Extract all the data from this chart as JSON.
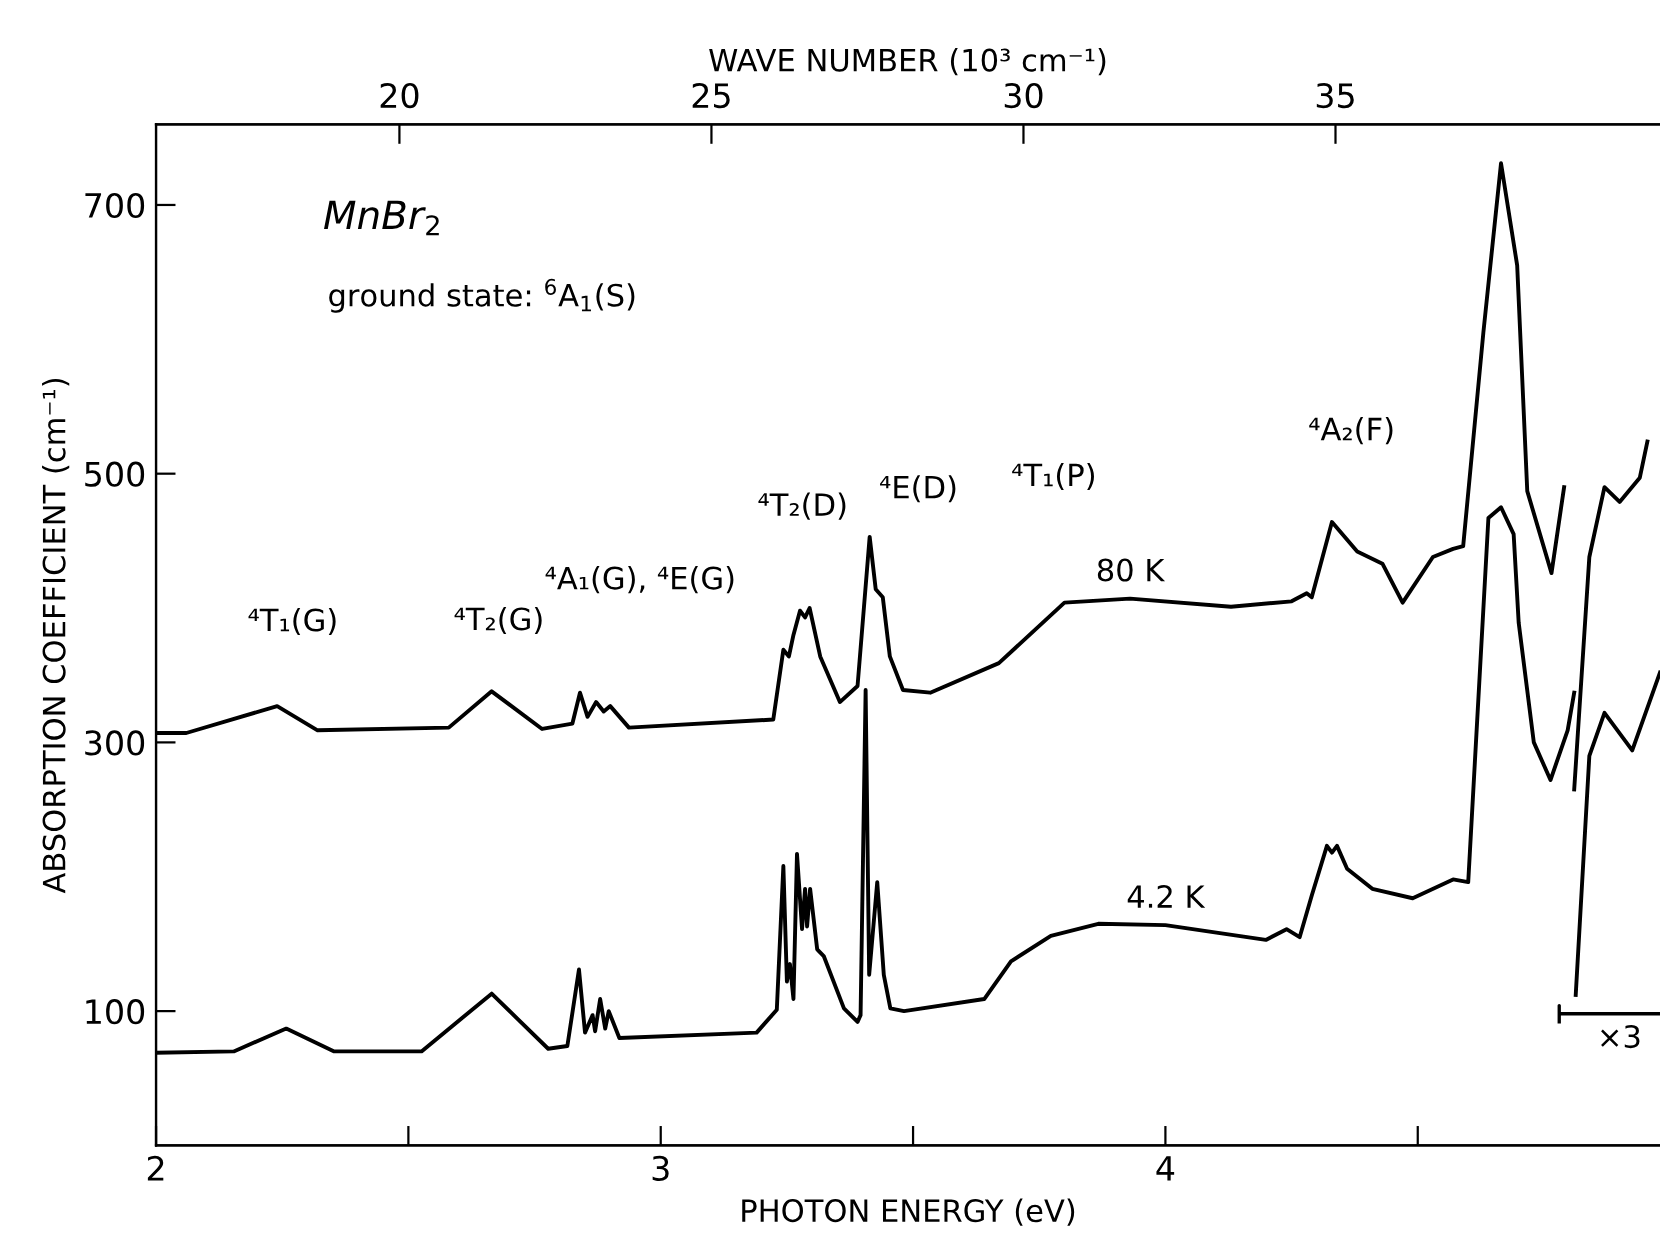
{
  "chart_data": {
    "type": "line",
    "xlabel": "PHOTON ENERGY (eV)",
    "ylabel": "ABSORPTION COEFFICIENT (cm⁻¹)",
    "x2label": "WAVE NUMBER (10³ cm⁻¹)",
    "xlim": [
      2,
      4.98
    ],
    "xticks": [
      2,
      3,
      4,
      {
        "value": 2.5,
        "label": null
      },
      {
        "value": 3.5,
        "label": null
      },
      {
        "value": 4.5,
        "label": null
      }
    ],
    "x2lim": [
      16.1,
      40.2
    ],
    "x2ticks": [
      20,
      25,
      30,
      35
    ],
    "ylim": [
      0,
      760
    ],
    "yticks": [
      100,
      300,
      500,
      700
    ],
    "grid": false,
    "legend": false,
    "marker": "none",
    "line_style": "solid",
    "series": [
      {
        "name": "80 K",
        "color": "#000000",
        "x": [
          2.0,
          2.06,
          2.24,
          2.32,
          2.58,
          2.665,
          2.765,
          2.825,
          2.84,
          2.855,
          2.872,
          2.887,
          2.9,
          2.937,
          3.223,
          3.243,
          3.254,
          3.263,
          3.276,
          3.286,
          3.295,
          3.316,
          3.355,
          3.39,
          3.414,
          3.426,
          3.44,
          3.454,
          3.48,
          3.534,
          3.67,
          3.8,
          3.93,
          4.13,
          4.25,
          4.28,
          4.29,
          4.33,
          4.38,
          4.43,
          4.47,
          4.53,
          4.57,
          4.59,
          4.63,
          4.665,
          4.697,
          4.717,
          4.765,
          4.79,
          4.8,
          4.81,
          4.84,
          4.87,
          4.9,
          4.94,
          4.955
        ],
        "values": [
          307,
          307,
          327,
          309,
          311,
          338,
          310,
          314,
          337,
          319,
          330,
          323,
          327,
          311,
          317,
          369,
          364,
          380,
          398,
          393,
          400,
          364,
          330,
          342,
          453,
          414,
          408,
          364,
          339,
          337,
          359,
          404,
          407,
          401,
          405,
          411,
          408,
          464,
          442,
          433,
          404,
          438,
          444,
          446,
          605,
          731,
          655,
          487,
          426,
          490,
          null,
          265,
          438,
          490,
          479,
          497,
          524
        ]
      },
      {
        "name": "4.2 K",
        "color": "#000000",
        "x": [
          2.0,
          2.154,
          2.258,
          2.353,
          2.526,
          2.665,
          2.777,
          2.815,
          2.838,
          2.85,
          2.865,
          2.87,
          2.88,
          2.89,
          2.897,
          2.918,
          3.19,
          3.23,
          3.243,
          3.25,
          3.256,
          3.263,
          3.27,
          3.28,
          3.286,
          3.29,
          3.296,
          3.31,
          3.323,
          3.363,
          3.39,
          3.396,
          3.406,
          3.413,
          3.429,
          3.442,
          3.455,
          3.482,
          3.641,
          3.694,
          3.773,
          3.867,
          4.0,
          4.199,
          4.24,
          4.266,
          4.29,
          4.32,
          4.33,
          4.34,
          4.36,
          4.41,
          4.49,
          4.57,
          4.6,
          4.64,
          4.665,
          4.69,
          4.7,
          4.73,
          4.763,
          4.797,
          4.81,
          4.812,
          4.813,
          4.84,
          4.87,
          4.925,
          4.98
        ],
        "values": [
          69,
          70,
          87,
          70,
          70,
          113,
          72,
          74,
          131,
          84,
          97,
          85,
          109,
          87,
          100,
          80,
          84,
          101,
          208,
          122,
          135,
          109,
          217,
          161,
          191,
          163,
          191,
          146,
          141,
          102,
          92,
          97,
          339,
          127,
          196,
          127,
          102,
          100,
          109,
          137,
          156,
          165,
          164,
          153,
          161,
          155,
          186,
          223,
          218,
          223,
          206,
          191,
          184,
          198,
          196,
          467,
          475,
          455,
          389,
          300,
          272,
          309,
          337,
          null,
          112,
          290,
          322,
          294,
          352
        ]
      }
    ],
    "annotations": [
      "MnBr$_{2}$",
      "ground state: $^{6}$A$_{1}$(S)",
      "⁴T₁(G)",
      "⁴T₂(G)",
      "⁴A₁(G), ⁴E(G)",
      "⁴T₂(D)",
      "⁴E(D)",
      "⁴T₁(P)",
      "⁴A₂(F)",
      "×3"
    ]
  }
}
